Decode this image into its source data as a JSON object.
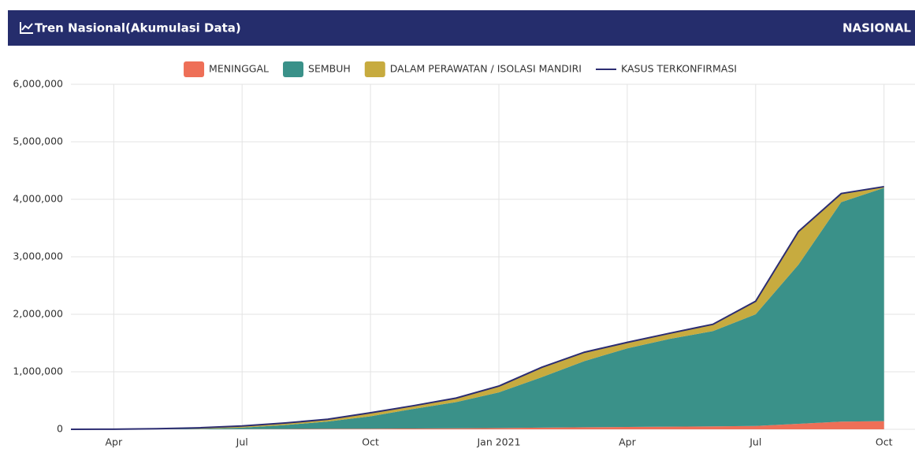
{
  "header": {
    "title": "Tren Nasional(Akumulasi Data)",
    "region": "NASIONAL"
  },
  "chart_data": {
    "type": "stacked-area",
    "categories": [
      null,
      "Apr",
      null,
      null,
      "Jul",
      null,
      null,
      "Oct",
      null,
      null,
      "Jan 2021",
      null,
      null,
      "Apr",
      null,
      null,
      "Jul",
      null,
      null,
      "Oct"
    ],
    "series": [
      {
        "name": "MENINGGAL",
        "type": "area",
        "color": "#ee6f57",
        "values": [
          0,
          150,
          800,
          1600,
          2900,
          5100,
          7800,
          10800,
          13900,
          17000,
          22100,
          29900,
          36300,
          41000,
          45900,
          50600,
          57600,
          95700,
          133700,
          142000
        ]
      },
      {
        "name": "SEMBUH",
        "type": "area",
        "color": "#3a9189",
        "values": [
          0,
          100,
          1900,
          7000,
          26000,
          68000,
          128000,
          216000,
          341000,
          456000,
          620000,
          876000,
          1151000,
          1367000,
          1527000,
          1657000,
          1943000,
          2767000,
          3817000,
          4056000
        ]
      },
      {
        "name": "DALAM PERAWATAN / ISOLASI MANDIRI",
        "type": "area",
        "color": "#c7ab3f",
        "values": [
          0,
          1450,
          7800,
          17900,
          28900,
          35900,
          39200,
          60200,
          55100,
          70000,
          109900,
          172100,
          153700,
          104000,
          99100,
          118400,
          227400,
          577300,
          149300,
          22000
        ]
      },
      {
        "name": "KASUS TERKONFIRMASI",
        "type": "line",
        "color": "#2c2d72",
        "values": [
          0,
          1700,
          10500,
          26500,
          57800,
          109000,
          175000,
          287000,
          410000,
          543000,
          752000,
          1078000,
          1341000,
          1512000,
          1672000,
          1826000,
          2228000,
          3440000,
          4100000,
          4220000
        ]
      }
    ],
    "ylim": [
      0,
      6000000
    ],
    "yticks": [
      0,
      {
        "value": 1000000,
        "label": "1,000,000"
      },
      {
        "value": 2000000,
        "label": "2,000,000"
      },
      {
        "value": 3000000,
        "label": "3,000,000"
      },
      {
        "value": 4000000,
        "label": "4,000,000"
      },
      {
        "value": 5000000,
        "label": "5,000,000"
      },
      {
        "value": 6000000,
        "label": "6,000,000"
      }
    ],
    "grid": true,
    "legend": "top"
  }
}
